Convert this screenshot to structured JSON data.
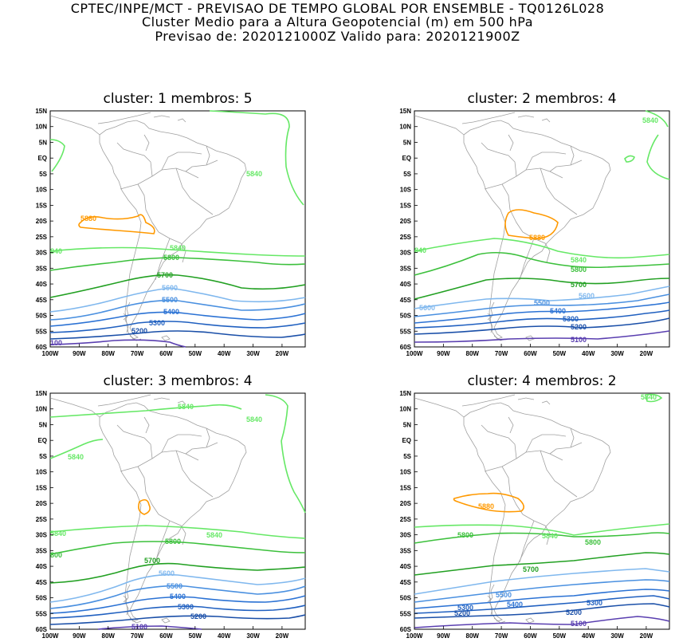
{
  "header": {
    "line1": "CPTEC/INPE/MCT - PREVISAO DE TEMPO GLOBAL POR ENSEMBLE - TQ0126L028",
    "line2": "Cluster Medio para a Altura Geopotencial (m) em 500 hPa",
    "line3": "Previsao de: 2020121000Z    Valido para: 2020121900Z"
  },
  "axes": {
    "lat_labels": [
      "15N",
      "10N",
      "5N",
      "EQ",
      "5S",
      "10S",
      "15S",
      "20S",
      "25S",
      "30S",
      "35S",
      "40S",
      "45S",
      "50S",
      "55S",
      "60S"
    ],
    "lon_labels": [
      "100W",
      "90W",
      "80W",
      "70W",
      "60W",
      "50W",
      "40W",
      "30W",
      "20W"
    ]
  },
  "colors": {
    "c5100": "#5a3fb0",
    "c5200": "#1a4fa8",
    "c5300": "#2060c0",
    "c5400": "#2b72d4",
    "c5500": "#4a90e0",
    "c5600": "#80b8ee",
    "c5700": "#22a022",
    "c5800": "#3cc03c",
    "c5840": "#66e866",
    "c5880": "#ff9900",
    "land": "#a0a0a0"
  },
  "panels": [
    {
      "title": "cluster: 1   membros: 5",
      "labels": {
        "l5880": "5880",
        "l5840a": "5840",
        "l5840b": "5840",
        "l5840c": "840",
        "l5800": "5800",
        "l5700": "5700",
        "l5600": "5600",
        "l5500": "5500",
        "l5400": "5400",
        "l5300": "5300",
        "l5200": "5200",
        "l5100": "100"
      }
    },
    {
      "title": "cluster: 2   membros: 4",
      "labels": {
        "l5880": "5880",
        "l5840a": "5840",
        "l5840b": "5840",
        "l5840c": "840",
        "l5800": "5800",
        "l5700": "5700",
        "l5600": "5600",
        "l5600b": "5600",
        "l5500": "5500",
        "l5400": "5400",
        "l5300": "5300",
        "l5200": "5200",
        "l5100": "5100"
      }
    },
    {
      "title": "cluster: 3   membros: 4",
      "labels": {
        "l5840a": "5840",
        "l5840b": "5840",
        "l5840c": "5840",
        "l5840d": "5840",
        "l5840e": "5840",
        "l5800": "5800",
        "l5800b": "800",
        "l5700": "5700",
        "l5600": "5600",
        "l5500": "5500",
        "l5400": "5400",
        "l5300": "5300",
        "l5200": "5200",
        "l5100": "5100"
      }
    },
    {
      "title": "cluster: 4   membros: 2",
      "labels": {
        "l5880": "5880",
        "l5840a": "5840",
        "l5840b": "5840",
        "l5800a": "5800",
        "l5800b": "5800",
        "l5700": "5700",
        "l5500": "5500",
        "l5400": "5400",
        "l5300a": "5300",
        "l5300b": "5300",
        "l5200a": "5200",
        "l5200b": "5200",
        "l5100": "5100"
      }
    }
  ]
}
